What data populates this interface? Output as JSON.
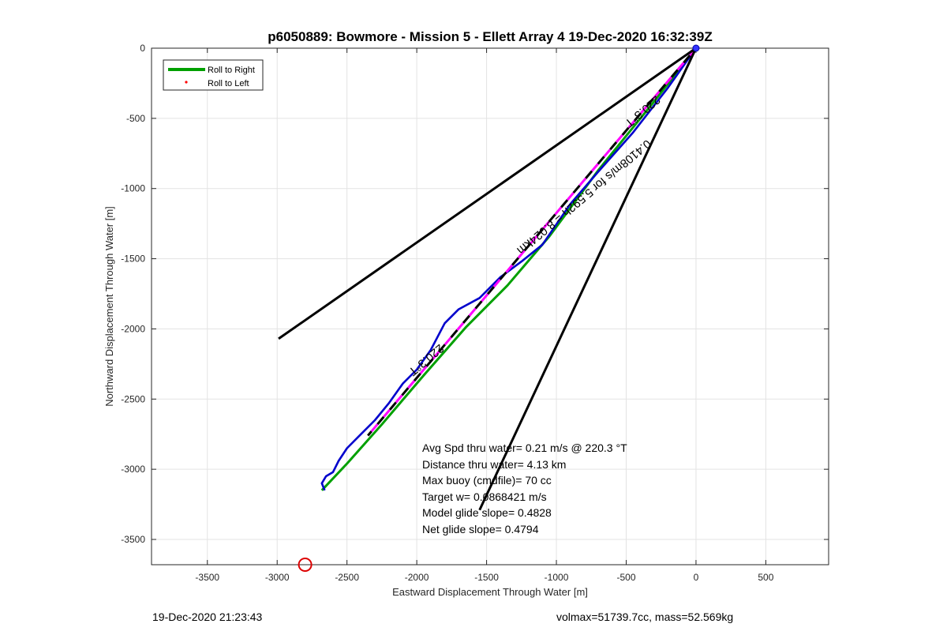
{
  "chart_data": {
    "type": "line",
    "title": "p6050889: Bowmore - Mission 5 - Ellett Array 4 19-Dec-2020 16:32:39Z",
    "xlabel": "Eastward Displacement Through Water [m]",
    "ylabel": "Northward Displacement Through Water [m]",
    "xlim": [
      -3900,
      950
    ],
    "ylim": [
      -3680,
      0
    ],
    "xticks": [
      -3500,
      -3000,
      -2500,
      -2000,
      -1500,
      -1000,
      -500,
      0,
      500
    ],
    "yticks": [
      0,
      -500,
      -1000,
      -1500,
      -2000,
      -2500,
      -3000,
      -3500
    ],
    "grid": true,
    "legend_position": "top-left",
    "legend": [
      {
        "label": "Roll to Right",
        "color": "#00a000",
        "style": "line"
      },
      {
        "label": "Roll to Left",
        "color": "#ff0000",
        "style": "dot"
      }
    ],
    "series": [
      {
        "name": "Roll to Right",
        "color": "#00a000",
        "x": [
          0,
          -300,
          -700,
          -1050,
          -1350,
          -1650,
          -1950,
          -2250,
          -2500,
          -2680
        ],
        "y": [
          0,
          -380,
          -870,
          -1340,
          -1690,
          -1990,
          -2330,
          -2680,
          -2960,
          -3150
        ]
      },
      {
        "color": "#0000cc",
        "x": [
          0,
          -200,
          -450,
          -700,
          -900,
          -1100,
          -1250,
          -1400,
          -1550,
          -1700,
          -1800,
          -1900,
          -2000,
          -2100,
          -2200,
          -2300,
          -2400,
          -2500,
          -2560,
          -2600,
          -2650,
          -2680,
          -2660
        ],
        "y": [
          0,
          -280,
          -600,
          -880,
          -1110,
          -1400,
          -1520,
          -1630,
          -1780,
          -1860,
          -1960,
          -2150,
          -2290,
          -2390,
          -2530,
          -2650,
          -2750,
          -2850,
          -2940,
          -3020,
          -3050,
          -3100,
          -3150
        ]
      },
      {
        "color": "#ff00ff",
        "dash": true,
        "x": [
          0,
          -2350
        ],
        "y": [
          0,
          -2760
        ]
      },
      {
        "color": "#000000",
        "dash": true,
        "x": [
          0,
          -2350
        ],
        "y": [
          0,
          -2760
        ]
      },
      {
        "color": "#000000",
        "x": [
          0,
          -2990
        ],
        "y": [
          0,
          -2070
        ]
      },
      {
        "color": "#000000",
        "x": [
          0,
          -1550
        ],
        "y": [
          0,
          -3290
        ]
      }
    ],
    "markers": [
      {
        "x": -2800,
        "y": -3680,
        "color": "#dd0000",
        "shape": "circle"
      }
    ],
    "annotations": [
      {
        "text": "220.3°T",
        "x": -400,
        "y": -430,
        "rotation": 140
      },
      {
        "text": "220.3°T",
        "x": -1950,
        "y": -2200,
        "rotation": 140
      },
      {
        "text": "0.4108m/s for 5.592h = 8.024km",
        "x": -820,
        "y": -1040,
        "rotation": 140
      }
    ],
    "stats_lines": [
      "Avg Spd thru water=  0.21 m/s @ 220.3 °T",
      "Distance thru water=  4.13 km",
      "Max buoy (cmdfile)= 70 cc",
      "Target w= 0.0868421 m/s",
      "Model glide slope= 0.4828",
      "Net glide slope= 0.4794"
    ]
  },
  "footer": {
    "timestamp": "19-Dec-2020 21:23:43",
    "summary": "volmax=51739.7cc, mass=52.569kg"
  }
}
